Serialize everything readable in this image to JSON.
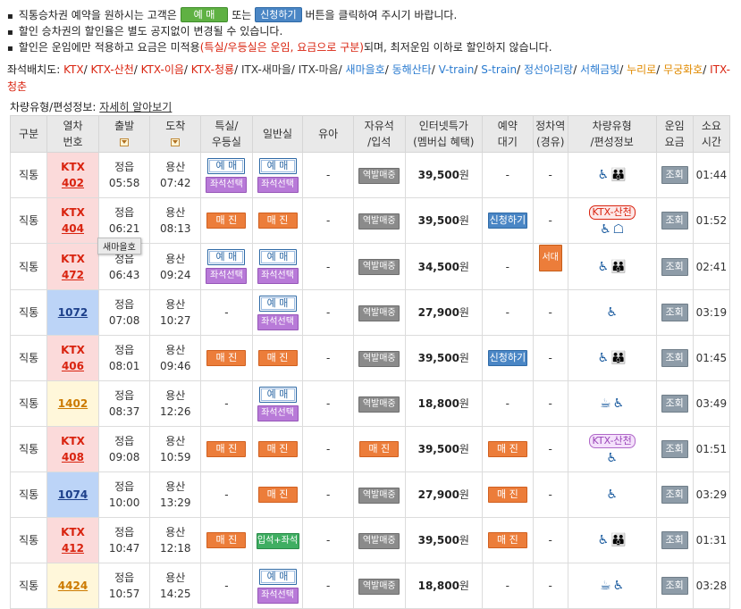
{
  "notice": {
    "line1_pre": "직통승차권 예약을 원하시는 고객은",
    "line1_btn1": "예 매",
    "line1_mid": "또는",
    "line1_btn2": "신청하기",
    "line1_post": "버튼을 클릭하여 주시기 바랍니다.",
    "line2": "할인 승차권의 할인율은 별도 공지없이 변경될 수 있습니다.",
    "line3_pre": "할인은 운임에만 적용하고 요금은 미적용",
    "line3_red": "(특실/우등실은 운임, 요금으로 구분)",
    "line3_post": "되며, 최저운임 이하로 할인하지 않습니다."
  },
  "seat_legend": {
    "label": "좌석배치도:",
    "items": [
      {
        "text": "KTX",
        "color": "#d9230f"
      },
      {
        "text": "KTX-산천",
        "color": "#d9230f"
      },
      {
        "text": "KTX-이음",
        "color": "#d9230f"
      },
      {
        "text": "KTX-청룡",
        "color": "#d9230f"
      },
      {
        "text": "ITX-새마을",
        "color": "#333333"
      },
      {
        "text": "ITX-마음",
        "color": "#333333"
      },
      {
        "text": "새마을호",
        "color": "#2a7bd0"
      },
      {
        "text": "동해산타",
        "color": "#2a7bd0"
      },
      {
        "text": "V-train",
        "color": "#2a7bd0"
      },
      {
        "text": "S-train",
        "color": "#2a7bd0"
      },
      {
        "text": "정선아리랑",
        "color": "#2a7bd0"
      },
      {
        "text": "서해금빛",
        "color": "#2a7bd0"
      },
      {
        "text": "누리로",
        "color": "#e08a00"
      },
      {
        "text": "무궁화호",
        "color": "#e08a00"
      },
      {
        "text": "ITX-청춘",
        "color": "#d9230f"
      }
    ]
  },
  "vehicle_info": {
    "label": "차량유형/편성정보:",
    "link": "자세히 알아보기"
  },
  "columns": {
    "c0": "구분",
    "c1a": "열차",
    "c1b": "번호",
    "c2": "출발",
    "c3": "도착",
    "c4a": "특실/",
    "c4b": "우등실",
    "c5": "일반실",
    "c6": "유아",
    "c7a": "자유석",
    "c7b": "/입석",
    "c8a": "인터넷특가",
    "c8b": "(멤버십 혜택)",
    "c9a": "예약",
    "c9b": "대기",
    "c10a": "정차역",
    "c10b": "(경유)",
    "c11a": "차량유형",
    "c11b": "/편성정보",
    "c12a": "운임",
    "c12b": "요금",
    "c13a": "소요",
    "c13b": "시간"
  },
  "rows": [
    {
      "type": "직통",
      "cat": "KTX",
      "num": "402",
      "dep_st": "정읍",
      "dep_t": "05:58",
      "arr_st": "용산",
      "arr_t": "07:42",
      "special": "rv+seat",
      "general": "rv+seat",
      "infant": "-",
      "free": "역발매중",
      "price": "39,500",
      "won": "원",
      "wait": "-",
      "stop": "-",
      "tag": "",
      "icons": "ktx",
      "duration": "01:44"
    },
    {
      "type": "직통",
      "cat": "KTX",
      "num": "404",
      "dep_st": "정읍",
      "dep_t": "06:21",
      "arr_st": "용산",
      "arr_t": "08:13",
      "special": "full",
      "general": "full",
      "infant": "-",
      "free": "역발매중",
      "price": "39,500",
      "won": "원",
      "wait": "apply",
      "stop": "-",
      "tag": "KTX-산천",
      "tagc": "red",
      "icons": "ktx2",
      "duration": "01:52"
    },
    {
      "type": "직통",
      "cat": "KTX",
      "num": "472",
      "dep_st": "정읍",
      "dep_t": "06:43",
      "arr_st": "용산",
      "arr_t": "09:24",
      "special": "rv+seat",
      "general": "rv+seat",
      "infant": "-",
      "free": "역발매중",
      "price": "34,500",
      "won": "원",
      "wait": "-",
      "stop": "서대전",
      "tag": "",
      "icons": "ktx",
      "duration": "02:41"
    },
    {
      "type": "직통",
      "cat": "",
      "num": "1072",
      "dep_st": "정읍",
      "dep_t": "07:08",
      "arr_st": "용산",
      "arr_t": "10:27",
      "special": "-",
      "general": "rv+seat",
      "infant": "-",
      "free": "역발매중",
      "price": "27,900",
      "won": "원",
      "wait": "-",
      "stop": "-",
      "tag": "",
      "icons": "itx",
      "duration": "03:19"
    },
    {
      "type": "직통",
      "cat": "KTX",
      "num": "406",
      "dep_st": "정읍",
      "dep_t": "08:01",
      "arr_st": "용산",
      "arr_t": "09:46",
      "special": "full",
      "general": "full",
      "infant": "-",
      "free": "역발매중",
      "price": "39,500",
      "won": "원",
      "wait": "apply",
      "stop": "-",
      "tag": "",
      "icons": "ktx",
      "duration": "01:45"
    },
    {
      "type": "직통",
      "cat": "",
      "num": "1402",
      "dep_st": "정읍",
      "dep_t": "08:37",
      "arr_st": "용산",
      "arr_t": "12:26",
      "special": "-",
      "general": "rv+seat",
      "infant": "-",
      "free": "역발매중",
      "price": "18,800",
      "won": "원",
      "wait": "-",
      "stop": "-",
      "tag": "",
      "icons": "mu",
      "duration": "03:49"
    },
    {
      "type": "직통",
      "cat": "KTX",
      "num": "408",
      "dep_st": "정읍",
      "dep_t": "09:08",
      "arr_st": "용산",
      "arr_t": "10:59",
      "special": "full",
      "general": "full",
      "infant": "-",
      "free": "full",
      "price": "39,500",
      "won": "원",
      "wait": "full",
      "stop": "-",
      "tag": "KTX-산천",
      "tagc": "pur",
      "icons": "itx",
      "duration": "01:51"
    },
    {
      "type": "직통",
      "cat": "",
      "num": "1074",
      "dep_st": "정읍",
      "dep_t": "10:00",
      "arr_st": "용산",
      "arr_t": "13:29",
      "special": "-",
      "general": "full",
      "infant": "-",
      "free": "역발매중",
      "price": "27,900",
      "won": "원",
      "wait": "full",
      "stop": "-",
      "tag": "",
      "icons": "itx",
      "duration": "03:29"
    },
    {
      "type": "직통",
      "cat": "KTX",
      "num": "412",
      "dep_st": "정읍",
      "dep_t": "10:47",
      "arr_st": "용산",
      "arr_t": "12:18",
      "special": "full",
      "general": "stand",
      "infant": "-",
      "free": "역발매중",
      "price": "39,500",
      "won": "원",
      "wait": "full",
      "stop": "-",
      "tag": "",
      "icons": "ktx",
      "duration": "01:31"
    },
    {
      "type": "직통",
      "cat": "",
      "num": "4424",
      "dep_st": "정읍",
      "dep_t": "10:57",
      "arr_st": "용산",
      "arr_t": "14:25",
      "special": "-",
      "general": "rv+seat",
      "infant": "-",
      "free": "역발매중",
      "price": "18,800",
      "won": "원",
      "wait": "-",
      "stop": "-",
      "tag": "",
      "icons": "mu",
      "duration": "03:28"
    }
  ],
  "labels": {
    "reserve": "예 매",
    "seat_select": "좌석선택",
    "sold_out": "매 진",
    "stand_seat": "입석+좌석",
    "station_sale": "역발매중",
    "apply": "신청하기",
    "query": "조회"
  },
  "tooltip": "새마을호",
  "icon_names": {
    "wheelchair": "wheelchair-icon",
    "family": "family-seat-icon",
    "table": "table-seat-icon",
    "cafe": "cafe-car-icon"
  }
}
